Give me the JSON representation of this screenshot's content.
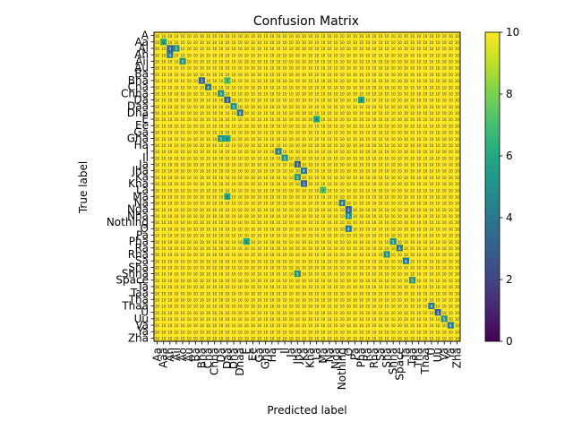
{
  "chart_data": {
    "type": "heatmap",
    "title": "Confusion Matrix",
    "xlabel": "Predicted label",
    "ylabel": "True label",
    "colormap": "viridis",
    "vmin": 0,
    "vmax": 10,
    "colorbar_ticks": [
      "0",
      "2",
      "4",
      "6",
      "8",
      "10"
    ],
    "default_cell_value": 10,
    "x_tick_labels": [
      "Aa",
      "Aaa",
      "Ah",
      "Aii",
      "Ao",
      "Au",
      "Ba",
      "Bha",
      "Cha",
      "Chha",
      "Da",
      "Daa",
      "Dha",
      "Dhaa",
      "E",
      "Ee",
      "Ga",
      "Gha",
      "Ha",
      "I",
      "Ii",
      "Ja",
      "Jha",
      "Ka",
      "Kha",
      "La",
      "Ma",
      "Na",
      "Nga",
      "Nothing",
      "O",
      "Pa",
      "Pha",
      "Ra",
      "Rha",
      "Sa",
      "Sha",
      "Shha",
      "Space",
      "Ta",
      "Taa",
      "Tha",
      "Thaa",
      "U",
      "Uu",
      "Va",
      "Ya",
      "Zha"
    ],
    "y_tick_labels": [
      "A",
      "Aa",
      "Ai",
      "Ah",
      "Aii",
      "Au",
      "Ba",
      "Bha",
      "Cha",
      "Chha",
      "Da",
      "Daa",
      "Dha",
      "E",
      "Ee",
      "Ga",
      "Gha",
      "Ha",
      "I",
      "Ii",
      "Ja",
      "Jha",
      "Ka",
      "Kha",
      "La",
      "Ma",
      "Na",
      "Nga",
      "Nha",
      "Nothing",
      "O",
      "Pa",
      "Pha",
      "Ra",
      "Rha",
      "Sa",
      "Sha",
      "Shha",
      "Space",
      "Ta",
      "Taa",
      "Tha",
      "Thaa",
      "U",
      "Uu",
      "Va",
      "Ya",
      "Zha"
    ],
    "off_values": [
      {
        "row": 1,
        "col": 1,
        "value": 6
      },
      {
        "row": 2,
        "col": 2,
        "value": 3
      },
      {
        "row": 2,
        "col": 3,
        "value": 5
      },
      {
        "row": 3,
        "col": 2,
        "value": 4
      },
      {
        "row": 4,
        "col": 4,
        "value": 5
      },
      {
        "row": 7,
        "col": 7,
        "value": 3
      },
      {
        "row": 8,
        "col": 8,
        "value": 4
      },
      {
        "row": 9,
        "col": 10,
        "value": 5
      },
      {
        "row": 10,
        "col": 11,
        "value": 3
      },
      {
        "row": 11,
        "col": 12,
        "value": 5
      },
      {
        "row": 12,
        "col": 13,
        "value": 4
      },
      {
        "row": 10,
        "col": 32,
        "value": 6
      },
      {
        "row": 7,
        "col": 11,
        "value": 7
      },
      {
        "row": 16,
        "col": 10,
        "value": 5
      },
      {
        "row": 16,
        "col": 11,
        "value": 6
      },
      {
        "row": 18,
        "col": 19,
        "value": 4
      },
      {
        "row": 19,
        "col": 20,
        "value": 5
      },
      {
        "row": 20,
        "col": 22,
        "value": 3
      },
      {
        "row": 21,
        "col": 23,
        "value": 4
      },
      {
        "row": 22,
        "col": 22,
        "value": 5
      },
      {
        "row": 23,
        "col": 23,
        "value": 3
      },
      {
        "row": 25,
        "col": 11,
        "value": 6
      },
      {
        "row": 26,
        "col": 29,
        "value": 4
      },
      {
        "row": 27,
        "col": 30,
        "value": 3
      },
      {
        "row": 28,
        "col": 30,
        "value": 5
      },
      {
        "row": 30,
        "col": 30,
        "value": 4
      },
      {
        "row": 32,
        "col": 37,
        "value": 5
      },
      {
        "row": 33,
        "col": 38,
        "value": 4
      },
      {
        "row": 34,
        "col": 36,
        "value": 5
      },
      {
        "row": 35,
        "col": 39,
        "value": 4
      },
      {
        "row": 38,
        "col": 40,
        "value": 5
      },
      {
        "row": 42,
        "col": 43,
        "value": 4
      },
      {
        "row": 43,
        "col": 44,
        "value": 3
      },
      {
        "row": 44,
        "col": 45,
        "value": 5
      },
      {
        "row": 45,
        "col": 46,
        "value": 4
      },
      {
        "row": 13,
        "col": 25,
        "value": 6
      },
      {
        "row": 37,
        "col": 22,
        "value": 5
      },
      {
        "row": 24,
        "col": 26,
        "value": 7
      },
      {
        "row": 32,
        "col": 14,
        "value": 6
      }
    ]
  }
}
